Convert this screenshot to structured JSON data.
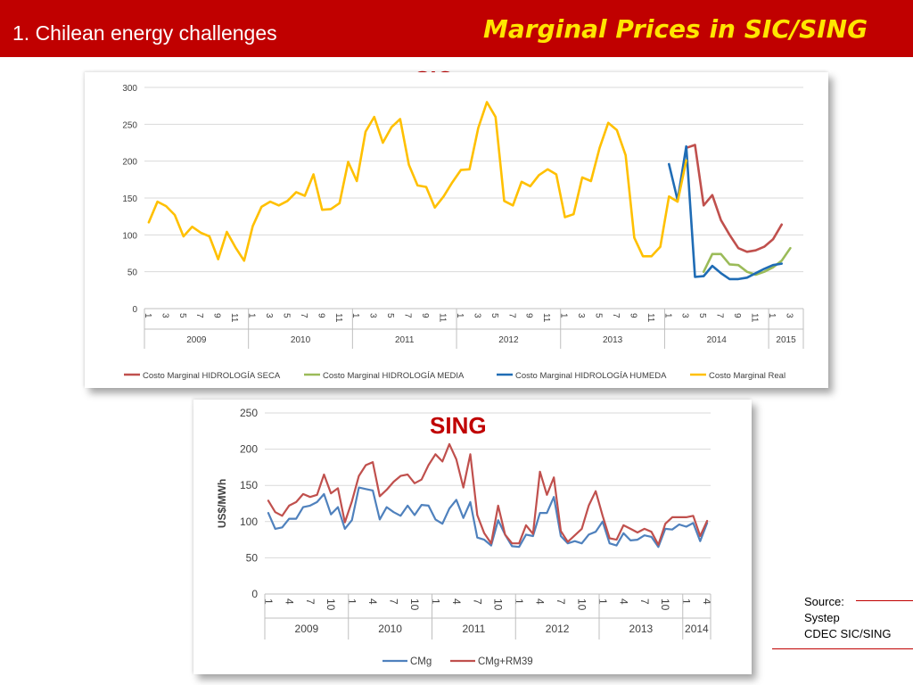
{
  "header": {
    "section_title": "1. Chilean energy challenges",
    "slide_title": "Marginal Prices in SIC/SING"
  },
  "colors": {
    "header_bg": "#c00000",
    "title_yellow": "#ffe600",
    "label_red": "#c00000",
    "seca": "#c0504d",
    "media": "#9bbb59",
    "humeda": "#1f6cb5",
    "real": "#ffc000",
    "cmg": "#4f81bd",
    "cmg_rm39": "#c0504d"
  },
  "source": {
    "lines": [
      "Source:",
      "Systep",
      "CDEC SIC/SING"
    ]
  },
  "chart_data": [
    {
      "type": "line",
      "chart_label": "SIC",
      "ylim": [
        0,
        300
      ],
      "yticks": [
        0,
        50,
        100,
        150,
        200,
        250,
        300
      ],
      "grid": true,
      "legend_position": "bottom",
      "x_month_ticks": [
        "1",
        "3",
        "5",
        "7",
        "9",
        "11",
        "1",
        "3",
        "5",
        "7",
        "9",
        "11",
        "1",
        "3",
        "5",
        "7",
        "9",
        "11",
        "1",
        "3",
        "5",
        "7",
        "9",
        "11",
        "1",
        "3",
        "5",
        "7",
        "9",
        "11",
        "1",
        "3",
        "5",
        "7",
        "9",
        "11",
        "1",
        "3"
      ],
      "years": [
        {
          "label": "2009",
          "months": 12
        },
        {
          "label": "2010",
          "months": 12
        },
        {
          "label": "2011",
          "months": 12
        },
        {
          "label": "2012",
          "months": 12
        },
        {
          "label": "2013",
          "months": 12
        },
        {
          "label": "2014",
          "months": 12
        },
        {
          "label": "2015",
          "months": 4
        }
      ],
      "series": [
        {
          "name": "Costo Marginal HIDROLOGÍA SECA",
          "color_key": "seca",
          "start_index": 62,
          "values": [
            218,
            222,
            140,
            154,
            120,
            100,
            82,
            77,
            79,
            84,
            94,
            114
          ]
        },
        {
          "name": "Costo Marginal HIDROLOGÍA MEDIA",
          "color_key": "media",
          "start_index": 64,
          "values": [
            50,
            74,
            74,
            60,
            59,
            50,
            46,
            50,
            56,
            65,
            82
          ]
        },
        {
          "name": "Costo Marginal HIDROLOGÍA HUMEDA",
          "color_key": "humeda",
          "start_index": 60,
          "values": [
            196,
            147,
            220,
            43,
            44,
            58,
            48,
            40,
            40,
            42,
            48,
            54,
            59,
            61
          ]
        },
        {
          "name": "Costo Marginal Real",
          "color_key": "real",
          "start_index": 0,
          "values": [
            117,
            145,
            139,
            127,
            98,
            111,
            103,
            98,
            67,
            104,
            83,
            65,
            112,
            138,
            145,
            140,
            146,
            158,
            153,
            182,
            134,
            135,
            143,
            199,
            173,
            240,
            260,
            225,
            246,
            257,
            195,
            167,
            165,
            137,
            152,
            171,
            188,
            189,
            245,
            280,
            260,
            146,
            140,
            172,
            166,
            181,
            189,
            182,
            124,
            128,
            178,
            173,
            218,
            252,
            242,
            208,
            96,
            71,
            71,
            84,
            152,
            145,
            201
          ]
        }
      ]
    },
    {
      "type": "line",
      "chart_label": "SING",
      "ylabel": "US$/MWh",
      "ylim": [
        0,
        250
      ],
      "yticks": [
        0,
        50,
        100,
        150,
        200,
        250
      ],
      "grid": true,
      "legend_position": "bottom",
      "x_month_ticks": [
        "1",
        "4",
        "7",
        "10",
        "1",
        "4",
        "7",
        "10",
        "1",
        "4",
        "7",
        "10",
        "1",
        "4",
        "7",
        "10",
        "1",
        "4",
        "7",
        "10",
        "1",
        "4"
      ],
      "years": [
        {
          "label": "2009",
          "months": 12
        },
        {
          "label": "2010",
          "months": 12
        },
        {
          "label": "2011",
          "months": 12
        },
        {
          "label": "2012",
          "months": 12
        },
        {
          "label": "2013",
          "months": 12
        },
        {
          "label": "2014",
          "months": 4
        }
      ],
      "series": [
        {
          "name": "CMg",
          "color_key": "cmg",
          "start_index": 0,
          "values": [
            112,
            90,
            92,
            104,
            104,
            120,
            122,
            127,
            138,
            110,
            120,
            90,
            102,
            147,
            145,
            143,
            103,
            120,
            113,
            108,
            122,
            109,
            123,
            122,
            103,
            97,
            118,
            130,
            105,
            127,
            78,
            75,
            67,
            102,
            82,
            66,
            65,
            82,
            80,
            112,
            112,
            134,
            80,
            70,
            73,
            70,
            82,
            86,
            100,
            70,
            67,
            84,
            74,
            75,
            81,
            79,
            65,
            90,
            89,
            96,
            93,
            98,
            73,
            98
          ]
        },
        {
          "name": "CMg+RM39",
          "color_key": "cmg_rm39",
          "start_index": 0,
          "values": [
            129,
            113,
            108,
            122,
            127,
            138,
            134,
            137,
            165,
            139,
            146,
            99,
            128,
            163,
            178,
            182,
            135,
            144,
            155,
            163,
            165,
            153,
            158,
            178,
            193,
            183,
            207,
            186,
            147,
            193,
            109,
            84,
            70,
            122,
            82,
            70,
            70,
            95,
            83,
            169,
            137,
            161,
            87,
            72,
            81,
            90,
            122,
            142,
            108,
            77,
            75,
            95,
            90,
            85,
            90,
            86,
            68,
            97,
            106,
            106,
            106,
            108,
            80,
            101
          ]
        }
      ]
    }
  ]
}
